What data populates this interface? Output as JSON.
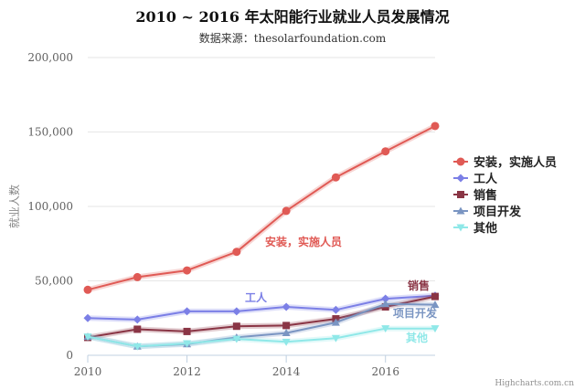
{
  "chart_data": {
    "type": "line",
    "title": "2010 ~ 2016 年太阳能行业就业人员发展情况",
    "subtitle": "数据来源：thesolarfoundation.com",
    "ylabel": "就业人数",
    "xlabel": "",
    "xlim": [
      2010,
      2017
    ],
    "ylim": [
      0,
      200000
    ],
    "x_ticks": [
      2010,
      2012,
      2014,
      2016
    ],
    "x_tick_labels": [
      "2010",
      "2012",
      "2014",
      "2016"
    ],
    "y_ticks": [
      0,
      50000,
      100000,
      150000,
      200000
    ],
    "y_tick_labels": [
      "0",
      "50,000",
      "100,000",
      "150,000",
      "200,000"
    ],
    "x": [
      2010,
      2011,
      2012,
      2013,
      2014,
      2015,
      2016,
      2017
    ],
    "grid": "horizontal",
    "legend_position": "right",
    "credits": "Highcharts.com.cn",
    "series": [
      {
        "name": "安装，实施人员",
        "color": "#e05a55",
        "marker": "circle",
        "values": [
          44000,
          52500,
          57000,
          69500,
          97000,
          119500,
          137000,
          154000
        ],
        "label": "安装，实施人员"
      },
      {
        "name": "工人",
        "color": "#7b7fe6",
        "marker": "diamond",
        "values": [
          25000,
          24000,
          29500,
          29500,
          32500,
          30500,
          38000,
          40000
        ],
        "label": "工人"
      },
      {
        "name": "销售",
        "color": "#8a3545",
        "marker": "square",
        "values": [
          12000,
          17500,
          16000,
          19500,
          20000,
          24500,
          32500,
          39500
        ],
        "label": "销售"
      },
      {
        "name": "项目开发",
        "color": "#7a95c2",
        "marker": "triangle",
        "values": [
          12500,
          6000,
          7500,
          12000,
          15000,
          22000,
          34500,
          34000
        ],
        "label": "项目开发"
      },
      {
        "name": "其他",
        "color": "#8fe8e8",
        "marker": "triangle-down",
        "values": [
          12500,
          6000,
          8000,
          11000,
          9000,
          11500,
          18000,
          18000
        ],
        "label": "其他"
      }
    ]
  }
}
